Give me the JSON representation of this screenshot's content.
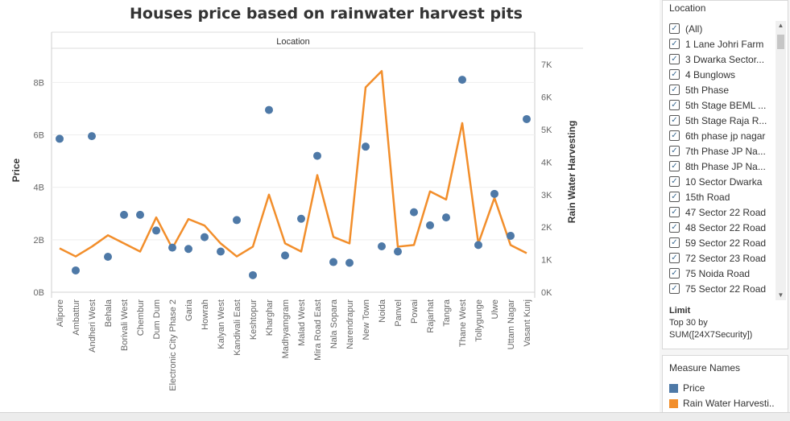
{
  "chart_data": {
    "type": "line",
    "title": "Houses price based on rainwater harvest pits",
    "header_label": "Location",
    "xlabel": "",
    "ylabel": "Price",
    "y2label": "Rain Water Harvesting",
    "ylim": [
      0,
      9.3
    ],
    "y2lim": [
      0,
      7500
    ],
    "y_ticks": [
      "0B",
      "2B",
      "4B",
      "6B",
      "8B"
    ],
    "y_tick_values": [
      0,
      2,
      4,
      6,
      8
    ],
    "y2_ticks": [
      "0K",
      "1K",
      "2K",
      "3K",
      "4K",
      "5K",
      "6K",
      "7K"
    ],
    "y2_tick_values": [
      0,
      1000,
      2000,
      3000,
      4000,
      5000,
      6000,
      7000
    ],
    "grid": true,
    "categories": [
      "Alipore",
      "Ambattur",
      "Andheri West",
      "Behala",
      "Borivali West",
      "Chembur",
      "Dum Dum",
      "Electronic City Phase 2",
      "Garia",
      "Howrah",
      "Kalyan West",
      "Kandivali East",
      "Keshtopur",
      "Kharghar",
      "Madhyamgram",
      "Malad West",
      "Mira Road East",
      "Nala Sopara",
      "Narendrapur",
      "New Town",
      "Noida",
      "Panvel",
      "Powai",
      "Rajarhat",
      "Tangra",
      "Thane West",
      "Tollygunge",
      "Ulwe",
      "Uttam Nagar",
      "Vasant Kunj"
    ],
    "series": [
      {
        "name": "Price",
        "axis": "left",
        "mark": "circle",
        "color": "#4e79a7",
        "values": [
          5.85,
          0.83,
          5.95,
          1.35,
          2.95,
          2.95,
          2.35,
          1.7,
          1.65,
          2.1,
          1.55,
          2.75,
          0.65,
          6.95,
          1.4,
          2.8,
          5.2,
          1.15,
          1.12,
          5.55,
          1.75,
          1.55,
          3.05,
          2.55,
          2.85,
          8.1,
          1.8,
          3.75,
          2.15,
          6.6
        ]
      },
      {
        "name": "Rain Water Harvesting",
        "axis": "right",
        "mark": "line",
        "color": "#f28e2b",
        "values": [
          1350,
          1100,
          1400,
          1750,
          1500,
          1250,
          2300,
          1350,
          2250,
          2050,
          1500,
          1100,
          1400,
          3000,
          1500,
          1250,
          3600,
          1700,
          1500,
          6300,
          6800,
          1400,
          1450,
          3100,
          2850,
          5200,
          1500,
          2900,
          1450,
          1200
        ]
      }
    ]
  },
  "filter_panel": {
    "title": "Location",
    "items": [
      "(All)",
      "1 Lane Johri Farm",
      "3 Dwarka Sector...",
      "4 Bunglows",
      "5th Phase",
      "5th Stage BEML ...",
      "5th Stage Raja R...",
      "6th phase jp nagar",
      "7th Phase JP Na...",
      "8th Phase JP Na...",
      "10 Sector Dwarka",
      "15th Road",
      "47 Sector 22 Road",
      "48 Sector 22 Road",
      "59 Sector 22 Road",
      "72 Sector 23 Road",
      "75 Noida Road",
      "75 Sector 22 Road"
    ],
    "check_glyph": "✓",
    "scroll_up_glyph": "▲",
    "scroll_down_glyph": "▼",
    "limit_title": "Limit",
    "limit_line1": "Top 30 by",
    "limit_line2": "SUM([24X7Security])"
  },
  "legend": {
    "title": "Measure Names",
    "items": [
      {
        "label": "Price",
        "color": "#4e79a7"
      },
      {
        "label": "Rain Water Harvesti..",
        "color": "#f28e2b"
      }
    ]
  }
}
